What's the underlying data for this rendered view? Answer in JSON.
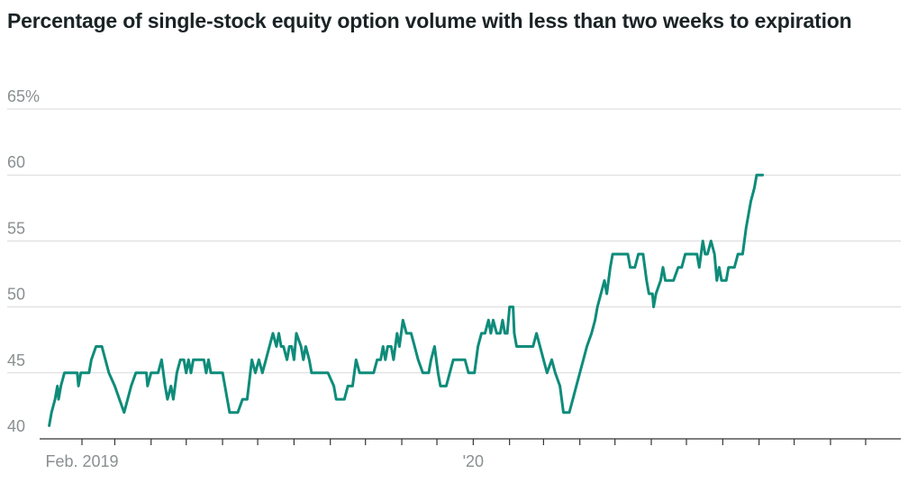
{
  "chart_data": {
    "type": "line",
    "title": "Percentage of single-stock equity option volume with less than two weeks to expiration",
    "xlabel": "",
    "ylabel": "",
    "ylim": [
      40,
      65
    ],
    "yticks": [
      "65%",
      "60",
      "55",
      "50",
      "45",
      "40"
    ],
    "ytick_values": [
      65,
      60,
      55,
      50,
      45,
      40
    ],
    "xlim": [
      "2019-01-02",
      "2020-12-31"
    ],
    "xtick_labels": [
      {
        "label": "Feb. 2019",
        "date": "2019-02-01"
      },
      {
        "label": "'20",
        "date": "2020-01-01"
      }
    ],
    "month_ticks": [
      "2019-02-01",
      "2019-03-01",
      "2019-04-01",
      "2019-05-01",
      "2019-06-01",
      "2019-07-01",
      "2019-08-01",
      "2019-09-01",
      "2019-10-01",
      "2019-11-01",
      "2019-12-01",
      "2020-01-01",
      "2020-02-01",
      "2020-03-01",
      "2020-04-01",
      "2020-05-01",
      "2020-06-01",
      "2020-07-01",
      "2020-08-01",
      "2020-09-01",
      "2020-10-01",
      "2020-11-01",
      "2020-12-01"
    ],
    "grid": true,
    "line_color": "#0e8c7a",
    "series": [
      {
        "points": [
          [
            "2019-01-04",
            41
          ],
          [
            "2019-01-06",
            42
          ],
          [
            "2019-01-09",
            43
          ],
          [
            "2019-01-11",
            44
          ],
          [
            "2019-01-12",
            43
          ],
          [
            "2019-01-14",
            44
          ],
          [
            "2019-01-17",
            45
          ],
          [
            "2019-01-23",
            45
          ],
          [
            "2019-01-28",
            45
          ],
          [
            "2019-01-29",
            44
          ],
          [
            "2019-01-31",
            45
          ],
          [
            "2019-02-07",
            45
          ],
          [
            "2019-02-09",
            46
          ],
          [
            "2019-02-13",
            47
          ],
          [
            "2019-02-18",
            47
          ],
          [
            "2019-02-21",
            46
          ],
          [
            "2019-02-24",
            45
          ],
          [
            "2019-03-01",
            44
          ],
          [
            "2019-03-05",
            43
          ],
          [
            "2019-03-09",
            42
          ],
          [
            "2019-03-12",
            43
          ],
          [
            "2019-03-15",
            44
          ],
          [
            "2019-03-19",
            45
          ],
          [
            "2019-03-25",
            45
          ],
          [
            "2019-03-28",
            45
          ],
          [
            "2019-03-29",
            44
          ],
          [
            "2019-04-01",
            45
          ],
          [
            "2019-04-07",
            45
          ],
          [
            "2019-04-10",
            46
          ],
          [
            "2019-04-13",
            44
          ],
          [
            "2019-04-15",
            43
          ],
          [
            "2019-04-18",
            44
          ],
          [
            "2019-04-20",
            43
          ],
          [
            "2019-04-23",
            45
          ],
          [
            "2019-04-26",
            46
          ],
          [
            "2019-04-29",
            46
          ],
          [
            "2019-05-01",
            45
          ],
          [
            "2019-05-03",
            46
          ],
          [
            "2019-05-05",
            45
          ],
          [
            "2019-05-07",
            46
          ],
          [
            "2019-05-09",
            46
          ],
          [
            "2019-05-16",
            46
          ],
          [
            "2019-05-18",
            45
          ],
          [
            "2019-05-20",
            46
          ],
          [
            "2019-05-22",
            45
          ],
          [
            "2019-06-01",
            45
          ],
          [
            "2019-06-07",
            42
          ],
          [
            "2019-06-14",
            42
          ],
          [
            "2019-06-18",
            43
          ],
          [
            "2019-06-22",
            43
          ],
          [
            "2019-06-26",
            46
          ],
          [
            "2019-06-29",
            45
          ],
          [
            "2019-07-02",
            46
          ],
          [
            "2019-07-05",
            45
          ],
          [
            "2019-07-08",
            46
          ],
          [
            "2019-07-11",
            47
          ],
          [
            "2019-07-14",
            48
          ],
          [
            "2019-07-17",
            47
          ],
          [
            "2019-07-19",
            48
          ],
          [
            "2019-07-21",
            47
          ],
          [
            "2019-07-23",
            47
          ],
          [
            "2019-07-26",
            46
          ],
          [
            "2019-07-28",
            47
          ],
          [
            "2019-07-30",
            47
          ],
          [
            "2019-08-01",
            46
          ],
          [
            "2019-08-03",
            48
          ],
          [
            "2019-08-07",
            47
          ],
          [
            "2019-08-09",
            46
          ],
          [
            "2019-08-11",
            47
          ],
          [
            "2019-08-14",
            46
          ],
          [
            "2019-08-16",
            45
          ],
          [
            "2019-08-23",
            45
          ],
          [
            "2019-08-30",
            45
          ],
          [
            "2019-09-04",
            44
          ],
          [
            "2019-09-06",
            43
          ],
          [
            "2019-09-13",
            43
          ],
          [
            "2019-09-16",
            44
          ],
          [
            "2019-09-20",
            44
          ],
          [
            "2019-09-23",
            46
          ],
          [
            "2019-09-26",
            45
          ],
          [
            "2019-09-30",
            45
          ],
          [
            "2019-10-03",
            45
          ],
          [
            "2019-10-08",
            45
          ],
          [
            "2019-10-11",
            46
          ],
          [
            "2019-10-14",
            46
          ],
          [
            "2019-10-16",
            47
          ],
          [
            "2019-10-18",
            46
          ],
          [
            "2019-10-20",
            47
          ],
          [
            "2019-10-23",
            47
          ],
          [
            "2019-10-25",
            46
          ],
          [
            "2019-10-28",
            48
          ],
          [
            "2019-10-30",
            47
          ],
          [
            "2019-11-02",
            49
          ],
          [
            "2019-11-05",
            48
          ],
          [
            "2019-11-09",
            48
          ],
          [
            "2019-11-12",
            47
          ],
          [
            "2019-11-15",
            46
          ],
          [
            "2019-11-19",
            45
          ],
          [
            "2019-11-24",
            45
          ],
          [
            "2019-11-26",
            46
          ],
          [
            "2019-11-29",
            47
          ],
          [
            "2019-12-02",
            45
          ],
          [
            "2019-12-04",
            44
          ],
          [
            "2019-12-09",
            44
          ],
          [
            "2019-12-12",
            45
          ],
          [
            "2019-12-15",
            46
          ],
          [
            "2019-12-20",
            46
          ],
          [
            "2019-12-25",
            46
          ],
          [
            "2019-12-28",
            45
          ],
          [
            "2020-01-02",
            45
          ],
          [
            "2020-01-05",
            47
          ],
          [
            "2020-01-08",
            48
          ],
          [
            "2020-01-11",
            48
          ],
          [
            "2020-01-14",
            49
          ],
          [
            "2020-01-16",
            48
          ],
          [
            "2020-01-18",
            49
          ],
          [
            "2020-01-21",
            48
          ],
          [
            "2020-01-24",
            48
          ],
          [
            "2020-01-26",
            49
          ],
          [
            "2020-01-28",
            48
          ],
          [
            "2020-01-30",
            48
          ],
          [
            "2020-02-01",
            50
          ],
          [
            "2020-02-04",
            50
          ],
          [
            "2020-02-05",
            48
          ],
          [
            "2020-02-07",
            47
          ],
          [
            "2020-02-13",
            47
          ],
          [
            "2020-02-21",
            47
          ],
          [
            "2020-02-24",
            48
          ],
          [
            "2020-02-27",
            47
          ],
          [
            "2020-03-01",
            46
          ],
          [
            "2020-03-04",
            45
          ],
          [
            "2020-03-08",
            46
          ],
          [
            "2020-03-11",
            45
          ],
          [
            "2020-03-15",
            44
          ],
          [
            "2020-03-18",
            42
          ],
          [
            "2020-03-23",
            42
          ],
          [
            "2020-03-26",
            43
          ],
          [
            "2020-03-29",
            44
          ],
          [
            "2020-04-01",
            45
          ],
          [
            "2020-04-04",
            46
          ],
          [
            "2020-04-07",
            47
          ],
          [
            "2020-04-11",
            48
          ],
          [
            "2020-04-14",
            49
          ],
          [
            "2020-04-16",
            50
          ],
          [
            "2020-04-19",
            51
          ],
          [
            "2020-04-22",
            52
          ],
          [
            "2020-04-24",
            51
          ],
          [
            "2020-04-27",
            53
          ],
          [
            "2020-04-29",
            54
          ],
          [
            "2020-05-03",
            54
          ],
          [
            "2020-05-06",
            54
          ],
          [
            "2020-05-09",
            54
          ],
          [
            "2020-05-12",
            54
          ],
          [
            "2020-05-14",
            53
          ],
          [
            "2020-05-18",
            53
          ],
          [
            "2020-05-21",
            54
          ],
          [
            "2020-05-25",
            54
          ],
          [
            "2020-05-28",
            52
          ],
          [
            "2020-05-30",
            51
          ],
          [
            "2020-06-02",
            51
          ],
          [
            "2020-06-03",
            50
          ],
          [
            "2020-06-05",
            51
          ],
          [
            "2020-06-09",
            52
          ],
          [
            "2020-06-11",
            53
          ],
          [
            "2020-06-13",
            52
          ],
          [
            "2020-06-16",
            52
          ],
          [
            "2020-06-20",
            52
          ],
          [
            "2020-06-24",
            53
          ],
          [
            "2020-06-27",
            53
          ],
          [
            "2020-06-30",
            54
          ],
          [
            "2020-07-03",
            54
          ],
          [
            "2020-07-07",
            54
          ],
          [
            "2020-07-10",
            54
          ],
          [
            "2020-07-12",
            53
          ],
          [
            "2020-07-15",
            55
          ],
          [
            "2020-07-17",
            54
          ],
          [
            "2020-07-19",
            54
          ],
          [
            "2020-07-22",
            55
          ],
          [
            "2020-07-25",
            54
          ],
          [
            "2020-07-27",
            52
          ],
          [
            "2020-07-29",
            53
          ],
          [
            "2020-07-31",
            52
          ],
          [
            "2020-08-04",
            52
          ],
          [
            "2020-08-06",
            53
          ],
          [
            "2020-08-11",
            53
          ],
          [
            "2020-08-14",
            54
          ],
          [
            "2020-08-18",
            54
          ],
          [
            "2020-08-21",
            56
          ],
          [
            "2020-08-23",
            57
          ],
          [
            "2020-08-25",
            58
          ],
          [
            "2020-08-28",
            59
          ],
          [
            "2020-08-30",
            60
          ],
          [
            "2020-09-04",
            60
          ]
        ]
      }
    ]
  }
}
